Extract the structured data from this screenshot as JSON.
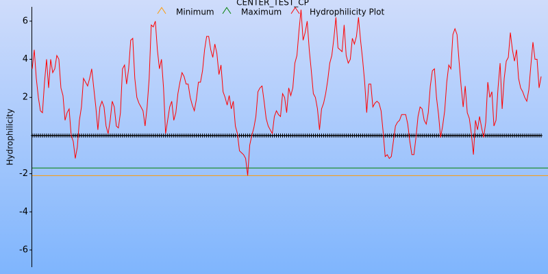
{
  "chart_data": {
    "type": "line",
    "title": "CENTER_TEST_CP",
    "ylabel": "Hydrophilicity",
    "ylim": [
      -6.9,
      6.75
    ],
    "yticks": [
      -6,
      -4,
      -2,
      2,
      4,
      6
    ],
    "reference_line": {
      "value": 0,
      "color": "#000000"
    },
    "series": [
      {
        "name": "Minimum",
        "color": "#ff9900",
        "value": -2.1
      },
      {
        "name": "Maximum",
        "color": "#008000",
        "value": -1.7
      },
      {
        "name": "Hydrophilicity Plot",
        "color": "#ff0000",
        "values": [
          3.5,
          4.5,
          3,
          2,
          1.3,
          1.2,
          2.8,
          4,
          2.5,
          4,
          3.3,
          3.5,
          4.2,
          4,
          2.5,
          2.1,
          0.8,
          1.2,
          1.4,
          0,
          -0.3,
          -1.2,
          -0.6,
          0.8,
          1.5,
          3,
          2.8,
          2.6,
          3,
          3.5,
          2.5,
          1.5,
          0.3,
          1.5,
          1.8,
          1.5,
          0.5,
          0.1,
          0.8,
          1.8,
          1.5,
          0.5,
          0.4,
          1.2,
          3.5,
          3.7,
          2.7,
          3.5,
          5,
          5.1,
          3,
          2,
          1.7,
          1.5,
          1.3,
          0.5,
          1.5,
          3,
          5.8,
          5.7,
          6,
          4.5,
          3.5,
          4,
          2.5,
          0.1,
          0.8,
          1.5,
          1.8,
          0.8,
          1.2,
          2.2,
          2.8,
          3.3,
          3.1,
          2.7,
          2.7,
          2,
          1.6,
          1.3,
          1.9,
          2.8,
          2.8,
          3.4,
          4.5,
          5.2,
          5.2,
          4.5,
          4.1,
          4.8,
          4.3,
          3.2,
          3.7,
          2.3,
          2,
          1.6,
          2.1,
          1.4,
          1.8,
          0.5,
          0.1,
          -0.8,
          -0.9,
          -1,
          -1.2,
          -2.1,
          -0.5,
          0,
          0.4,
          1,
          2.3,
          2.5,
          2.6,
          1.8,
          0.9,
          0.5,
          0.3,
          0.1,
          1,
          1.3,
          1.1,
          1,
          2.2,
          2,
          1.2,
          2.5,
          2.1,
          2.5,
          3.8,
          4.2,
          5.5,
          6.6,
          5,
          5.4,
          6,
          4.5,
          3.4,
          2.2,
          2,
          1.4,
          0.3,
          1.4,
          1.7,
          2.2,
          2.9,
          3.8,
          4.2,
          5.1,
          6.2,
          4.6,
          4.5,
          4.4,
          5.8,
          4.2,
          3.8,
          4,
          5.1,
          4.8,
          5.2,
          6.2,
          5,
          4,
          2.8,
          1.2,
          2.7,
          2.7,
          1.5,
          1.7,
          1.8,
          1.7,
          1.3,
          0.2,
          -1.1,
          -1,
          -1.2,
          -1.1,
          -0.3,
          0.5,
          0.7,
          0.8,
          1.1,
          1.1,
          1.1,
          0.6,
          -0.3,
          -1,
          -1,
          -0.1,
          1,
          1.5,
          1.4,
          0.8,
          0.6,
          1.2,
          2.6,
          3.4,
          3.5,
          2,
          1.1,
          -0.1,
          0.5,
          1.3,
          2.8,
          3.7,
          3.5,
          5.3,
          5.6,
          5.3,
          3.9,
          2.6,
          1.5,
          2.6,
          1.2,
          0.9,
          0.1,
          -1,
          0.8,
          0.3,
          1,
          0.4,
          -0.1,
          0.7,
          2.8,
          2,
          2.3,
          0.5,
          0.8,
          2.5,
          3.8,
          1.4,
          3,
          3.9,
          4.1,
          5.4,
          4.5,
          3.9,
          4.5,
          3,
          2.5,
          2.3,
          2,
          1.8,
          2.4,
          3.7,
          4.9,
          4,
          4,
          2.5,
          3.1
        ]
      }
    ]
  }
}
